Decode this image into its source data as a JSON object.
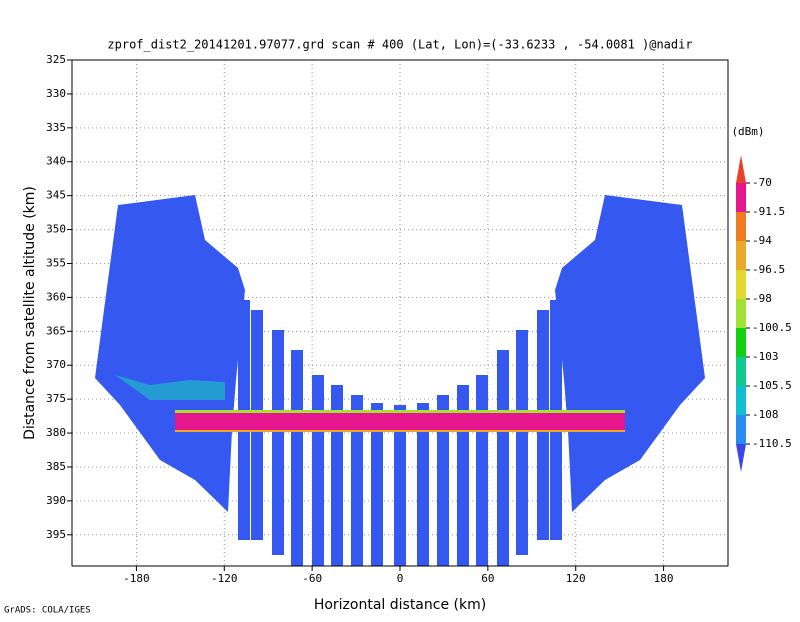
{
  "chart_data": {
    "type": "heatmap",
    "title": "zprof_dist2_20141201.97077.grd  scan # 400  (Lat, Lon)=(-33.6233 , -54.0081 )@nadir",
    "x_label": "Horizontal distance (km)",
    "y_label": "Distance from satellite altitude (km)",
    "xlim": [
      -224,
      224
    ],
    "xticks": [
      -180,
      -120,
      -60,
      0,
      60,
      120,
      180
    ],
    "ylim": [
      399.6,
      325
    ],
    "yticks": [
      325,
      330,
      335,
      340,
      345,
      350,
      355,
      360,
      365,
      370,
      375,
      380,
      385,
      390,
      395
    ],
    "grid": true,
    "colorbar_unit": "(dBm)",
    "colorbar_levels": [
      -70,
      -91.5,
      -94,
      -96.5,
      -98,
      -100.5,
      -103,
      -105.5,
      -108,
      -110.5
    ],
    "colorbar_colors": [
      "#e8402a",
      "#e6168e",
      "#ee7a22",
      "#e8aa2a",
      "#e2d832",
      "#a2e232",
      "#10d010",
      "#10c890",
      "#10c0d0",
      "#2a8cf0",
      "#3a46e8"
    ],
    "credit": "GrADS: COLA/IGES"
  }
}
